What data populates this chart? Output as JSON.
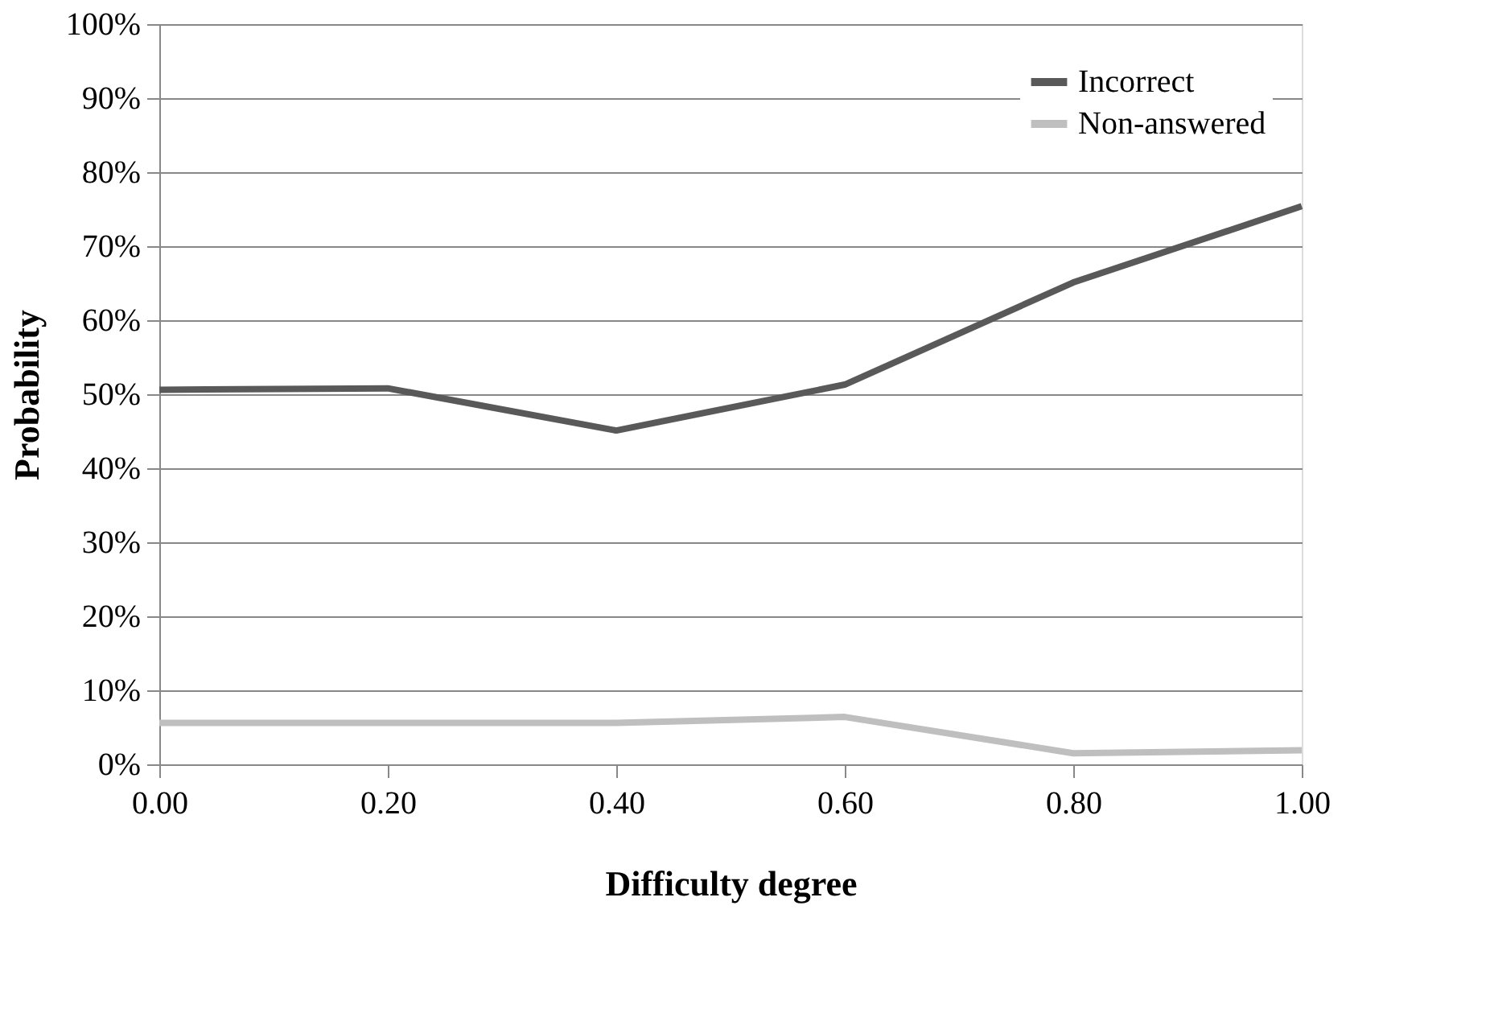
{
  "chart_data": {
    "type": "line",
    "xlabel": "Difficulty degree",
    "ylabel": "Probability",
    "x": [
      0,
      0.2,
      0.4,
      0.6,
      0.8,
      1.0
    ],
    "series": [
      {
        "name": "Incorrect",
        "color": "#595959",
        "values": [
          50.6,
          50.8,
          45.1,
          51.3,
          65.1,
          75.4
        ]
      },
      {
        "name": "Non-answered",
        "color": "#bfbfbf",
        "values": [
          5.6,
          5.6,
          5.6,
          6.4,
          1.5,
          1.9
        ]
      }
    ],
    "xlim": [
      0,
      1
    ],
    "xticks": [
      {
        "value": 0,
        "label": "0.00"
      },
      {
        "value": 0.2,
        "label": "0.20"
      },
      {
        "value": 0.4,
        "label": "0.40"
      },
      {
        "value": 0.6,
        "label": "0.60"
      },
      {
        "value": 0.8,
        "label": "0.80"
      },
      {
        "value": 1,
        "label": "1.00"
      }
    ],
    "ylim": [
      0,
      100
    ],
    "yticks": [
      {
        "value": 0,
        "label": "0%"
      },
      {
        "value": 10,
        "label": "10%"
      },
      {
        "value": 20,
        "label": "20%"
      },
      {
        "value": 30,
        "label": "30%"
      },
      {
        "value": 40,
        "label": "40%"
      },
      {
        "value": 50,
        "label": "50%"
      },
      {
        "value": 60,
        "label": "60%"
      },
      {
        "value": 70,
        "label": "70%"
      },
      {
        "value": 80,
        "label": "80%"
      },
      {
        "value": 90,
        "label": "90%"
      },
      {
        "value": 100,
        "label": "100%"
      }
    ],
    "grid": "y",
    "legend": "top right",
    "marker": "none",
    "line_style": "solid"
  }
}
